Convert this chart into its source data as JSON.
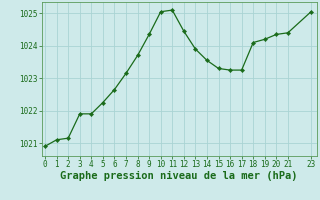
{
  "x": [
    0,
    1,
    2,
    3,
    4,
    5,
    6,
    7,
    8,
    9,
    10,
    11,
    12,
    13,
    14,
    15,
    16,
    17,
    18,
    19,
    20,
    21,
    23
  ],
  "y": [
    1020.9,
    1021.1,
    1021.15,
    1021.9,
    1021.9,
    1022.25,
    1022.65,
    1023.15,
    1023.7,
    1024.35,
    1025.05,
    1025.1,
    1024.45,
    1023.9,
    1023.55,
    1023.3,
    1023.25,
    1023.25,
    1024.1,
    1024.2,
    1024.35,
    1024.4,
    1025.05
  ],
  "line_color": "#1a6b1a",
  "marker": "D",
  "marker_size": 2.2,
  "bg_color": "#ceeaea",
  "grid_color": "#aad4d4",
  "xlabel": "Graphe pression niveau de la mer (hPa)",
  "xlabel_color": "#1a6b1a",
  "xlabel_fontsize": 7.5,
  "xlabel_fontweight": "bold",
  "yticks": [
    1021,
    1022,
    1023,
    1024,
    1025
  ],
  "xticks": [
    0,
    1,
    2,
    3,
    4,
    5,
    6,
    7,
    8,
    9,
    10,
    11,
    12,
    13,
    14,
    15,
    16,
    17,
    18,
    19,
    20,
    21,
    23
  ],
  "ylim": [
    1020.6,
    1025.35
  ],
  "xlim": [
    -0.3,
    23.5
  ],
  "tick_color": "#1a6b1a",
  "tick_fontsize": 5.5,
  "spine_color": "#5a9a5a",
  "linewidth": 0.9
}
